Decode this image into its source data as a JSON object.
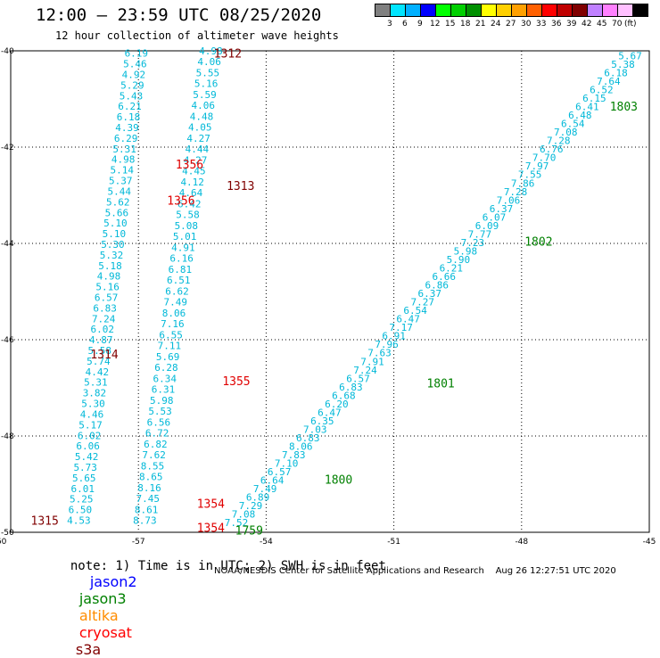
{
  "header": {
    "title": "12:00 – 23:59 UTC 08/25/2020",
    "subtitle": "12 hour collection of altimeter wave heights"
  },
  "colorbar": {
    "colors": [
      "#808080",
      "#00e5ff",
      "#00b0ff",
      "#0000ff",
      "#00ff00",
      "#00d000",
      "#009000",
      "#ffff00",
      "#ffd000",
      "#ffa000",
      "#ff6000",
      "#ff0000",
      "#c00000",
      "#800000",
      "#c080ff",
      "#ff80ff",
      "#ffc0ff",
      "#000000"
    ],
    "labels": [
      "3",
      "6",
      "9",
      "12",
      "15",
      "18",
      "21",
      "24",
      "27",
      "30",
      "33",
      "36",
      "39",
      "42",
      "45",
      "70",
      "(ft)"
    ]
  },
  "note": {
    "text": "note: 1) Time is in UTC; 2) SWH is in feet",
    "satellites": [
      {
        "name": "jason2",
        "color": "#0000ff"
      },
      {
        "name": "jason3",
        "color": "#008000"
      },
      {
        "name": "altika",
        "color": "#ff8c00"
      },
      {
        "name": "cryosat",
        "color": "#ff0000"
      },
      {
        "name": "s3a",
        "color": "#800000"
      }
    ]
  },
  "credit": "NOAA/NESDIS Center for Satellite Applications and Research    Aug 26 12:27:51 UTC 2020",
  "chart_data": {
    "type": "scatter",
    "xlim": [
      -60,
      -45
    ],
    "ylim": [
      -50,
      -40
    ],
    "x_ticks": [
      "-60",
      "-57",
      "-54",
      "-51",
      "-48",
      "-45"
    ],
    "y_ticks": [
      "-40",
      "-42",
      "-44",
      "-46",
      "-48",
      "-50"
    ],
    "grid": true,
    "value_color": "#00b8d8",
    "tracks": [
      {
        "id": "left-track",
        "start": [
          -57.05,
          -40.05
        ],
        "end": [
          -58.4,
          -49.75
        ],
        "values": [
          "6.19",
          "5.46",
          "4.92",
          "5.29",
          "5.43",
          "6.21",
          "6.18",
          "4.39",
          "6.29",
          "5.31",
          "4.98",
          "5.14",
          "5.37",
          "5.44",
          "5.62",
          "5.66",
          "5.10",
          "5.10",
          "5.30",
          "5.32",
          "5.18",
          "4.98",
          "5.16",
          "6.57",
          "6.83",
          "7.24",
          "6.02",
          "4.87",
          "5.58",
          "5.74",
          "4.42",
          "5.31",
          "3.82",
          "5.30",
          "4.46",
          "5.17",
          "6.02",
          "6.06",
          "5.42",
          "5.73",
          "5.65",
          "6.01",
          "5.25",
          "6.50",
          "4.53"
        ]
      },
      {
        "id": "middle-track",
        "start": [
          -55.3,
          -40.0
        ],
        "end": [
          -56.85,
          -49.75
        ],
        "values": [
          "4.98",
          "4.06",
          "5.55",
          "5.16",
          "5.59",
          "4.06",
          "4.48",
          "4.05",
          "4.27",
          "4.44",
          "4.27",
          "4.45",
          "4.12",
          "4.64",
          "6.42",
          "5.58",
          "5.08",
          "5.01",
          "4.91",
          "6.16",
          "6.81",
          "6.51",
          "6.62",
          "7.49",
          "8.06",
          "7.16",
          "6.55",
          "7.11",
          "5.69",
          "6.28",
          "6.34",
          "6.31",
          "5.98",
          "5.53",
          "6.56",
          "6.72",
          "6.82",
          "7.62",
          "8.55",
          "8.65",
          "8.16",
          "7.45",
          "8.61",
          "8.73"
        ]
      },
      {
        "id": "right-track",
        "start": [
          -45.45,
          -40.1
        ],
        "end": [
          -54.7,
          -49.8
        ],
        "values": [
          "5.67",
          "5.38",
          "6.18",
          "7.64",
          "6.52",
          "6.15",
          "6.41",
          "6.48",
          "6.54",
          "7.08",
          "7.28",
          "6.76",
          "7.70",
          "7.97",
          "7.55",
          "7.86",
          "7.28",
          "7.06",
          "6.37",
          "6.07",
          "6.09",
          "7.77",
          "7.23",
          "5.98",
          "5.90",
          "6.21",
          "6.66",
          "6.86",
          "6.37",
          "7.27",
          "6.54",
          "6.47",
          "7.17",
          "6.91",
          "7.96",
          "7.63",
          "7.91",
          "7.24",
          "6.57",
          "6.83",
          "6.68",
          "6.20",
          "6.47",
          "6.35",
          "7.03",
          "6.83",
          "8.06",
          "7.83",
          "7.10",
          "6.57",
          "6.64",
          "7.49",
          "6.89",
          "7.29",
          "7.08",
          "7.52"
        ]
      }
    ],
    "time_labels": [
      {
        "text": "1312",
        "lon": -54.9,
        "lat": -40.05,
        "color": "#800000"
      },
      {
        "text": "1356",
        "lon": -55.8,
        "lat": -42.35,
        "color": "#e00000"
      },
      {
        "text": "1313",
        "lon": -54.6,
        "lat": -42.8,
        "color": "#800000"
      },
      {
        "text": "1356",
        "lon": -56.0,
        "lat": -43.1,
        "color": "#e00000"
      },
      {
        "text": "1314",
        "lon": -57.8,
        "lat": -46.3,
        "color": "#800000"
      },
      {
        "text": "1355",
        "lon": -54.7,
        "lat": -46.85,
        "color": "#e00000"
      },
      {
        "text": "1315",
        "lon": -59.2,
        "lat": -49.75,
        "color": "#800000"
      },
      {
        "text": "1354",
        "lon": -55.3,
        "lat": -49.4,
        "color": "#e00000"
      },
      {
        "text": "1354",
        "lon": -55.3,
        "lat": -49.9,
        "color": "#e00000"
      },
      {
        "text": "1759",
        "lon": -54.4,
        "lat": -49.95,
        "color": "#008000"
      },
      {
        "text": "1800",
        "lon": -52.3,
        "lat": -48.9,
        "color": "#008000"
      },
      {
        "text": "1801",
        "lon": -49.9,
        "lat": -46.9,
        "color": "#008000"
      },
      {
        "text": "1802",
        "lon": -47.6,
        "lat": -43.95,
        "color": "#008000"
      },
      {
        "text": "1803",
        "lon": -45.6,
        "lat": -41.15,
        "color": "#008000"
      }
    ]
  }
}
